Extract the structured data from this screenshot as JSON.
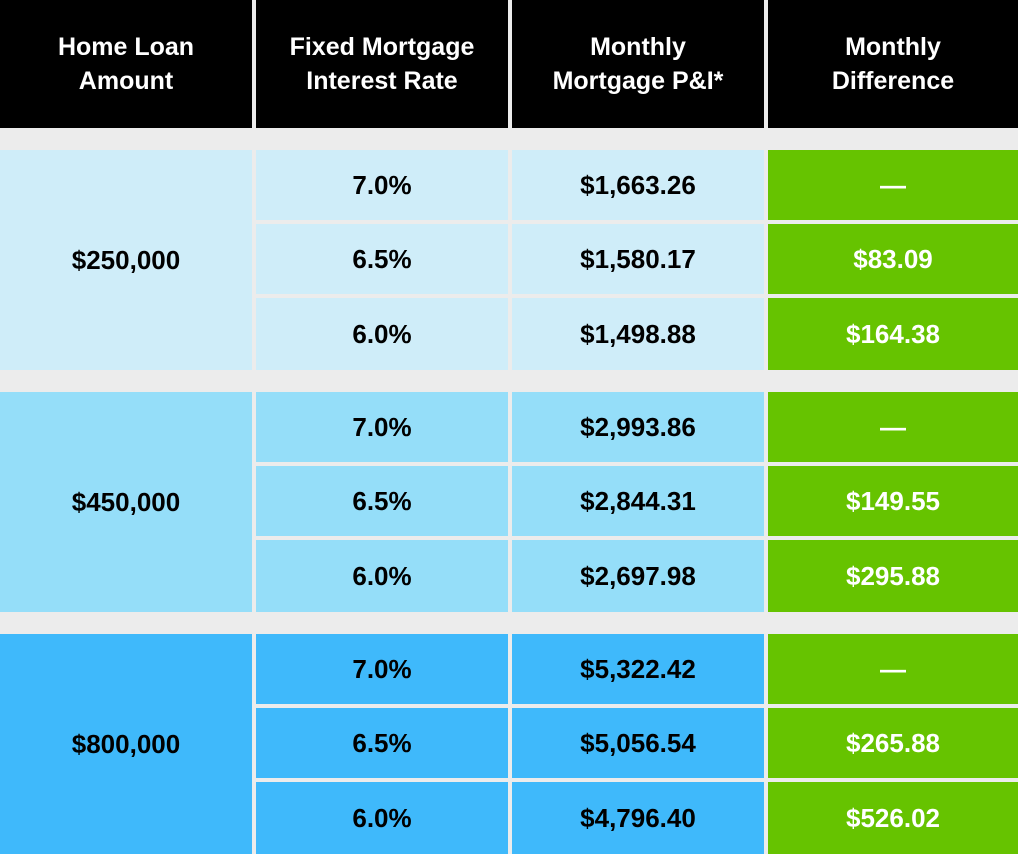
{
  "headers": [
    "Home Loan\nAmount",
    "Fixed Mortgage\nInterest Rate",
    "Monthly\nMortgage P&I*",
    "Monthly\nDifference"
  ],
  "groups": [
    {
      "loan_amount": "$250,000",
      "rows": [
        {
          "rate": "7.0%",
          "payment": "$1,663.26",
          "difference": "—"
        },
        {
          "rate": "6.5%",
          "payment": "$1,580.17",
          "difference": "$83.09"
        },
        {
          "rate": "6.0%",
          "payment": "$1,498.88",
          "difference": "$164.38"
        }
      ]
    },
    {
      "loan_amount": "$450,000",
      "rows": [
        {
          "rate": "7.0%",
          "payment": "$2,993.86",
          "difference": "—"
        },
        {
          "rate": "6.5%",
          "payment": "$2,844.31",
          "difference": "$149.55"
        },
        {
          "rate": "6.0%",
          "payment": "$2,697.98",
          "difference": "$295.88"
        }
      ]
    },
    {
      "loan_amount": "$800,000",
      "rows": [
        {
          "rate": "7.0%",
          "payment": "$5,322.42",
          "difference": "—"
        },
        {
          "rate": "6.5%",
          "payment": "$5,056.54",
          "difference": "$265.88"
        },
        {
          "rate": "6.0%",
          "payment": "$4,796.40",
          "difference": "$526.02"
        }
      ]
    }
  ],
  "colors": {
    "header_bg": "#000000",
    "group_1_bg": "#cfedf9",
    "group_2_bg": "#95def9",
    "group_3_bg": "#3fb9fb",
    "difference_bg": "#66c300"
  }
}
